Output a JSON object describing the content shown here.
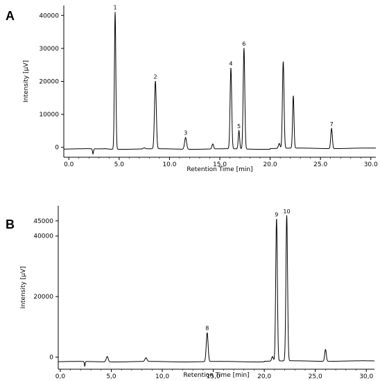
{
  "chart_data": [
    {
      "type": "line",
      "panel_label": "A",
      "xlabel": "Retention Time [min]",
      "ylabel": "Intensity [µV]",
      "xlim": [
        -0.5,
        30.5
      ],
      "ylim": [
        -3000,
        43000
      ],
      "x_ticks": [
        0.0,
        5.0,
        10.0,
        15.0,
        20.0,
        25.0,
        30.0
      ],
      "x_tick_labels": [
        "0.0",
        "5.0",
        "10.0",
        "15.0",
        "20.0",
        "25.0",
        "30.0"
      ],
      "y_ticks": [
        0,
        10000,
        20000,
        30000,
        40000
      ],
      "y_tick_labels": [
        "0",
        "10000",
        "20000",
        "30000",
        "40000"
      ],
      "baseline": -500,
      "peaks": [
        {
          "x": 2.4,
          "y": -2000,
          "w": 0.05
        },
        {
          "x": 3.6,
          "y": -400,
          "w": 0.2
        },
        {
          "x": 4.6,
          "y": 41000,
          "w": 0.07,
          "label": "1"
        },
        {
          "x": 7.5,
          "y": -200,
          "w": 0.1
        },
        {
          "x": 8.6,
          "y": 20000,
          "w": 0.09,
          "label": "2"
        },
        {
          "x": 11.6,
          "y": 3000,
          "w": 0.1,
          "label": "3"
        },
        {
          "x": 14.3,
          "y": 1000,
          "w": 0.08
        },
        {
          "x": 16.1,
          "y": 24000,
          "w": 0.08,
          "label": "4"
        },
        {
          "x": 16.9,
          "y": 5000,
          "w": 0.07,
          "label": "5"
        },
        {
          "x": 17.4,
          "y": 30000,
          "w": 0.08,
          "label": "6"
        },
        {
          "x": 20.9,
          "y": 1000,
          "w": 0.08
        },
        {
          "x": 21.3,
          "y": 25800,
          "w": 0.08
        },
        {
          "x": 22.3,
          "y": 15400,
          "w": 0.07
        },
        {
          "x": 26.1,
          "y": 5600,
          "w": 0.08,
          "label": "7"
        }
      ]
    },
    {
      "type": "line",
      "panel_label": "B",
      "xlabel": "Retention Time [min]",
      "ylabel": "Intensity [µV]",
      "xlim": [
        -0.2,
        30.8
      ],
      "ylim": [
        -4000,
        50000
      ],
      "x_ticks": [
        0.0,
        5.0,
        10.0,
        15.0,
        20.0,
        25.0,
        30.0
      ],
      "x_tick_labels": [
        "0,0",
        "5,0",
        "10,0",
        "15,0",
        "20,0",
        "25,0",
        "30,0"
      ],
      "y_ticks": [
        0,
        20000,
        40000,
        45000
      ],
      "y_tick_labels": [
        "0",
        "20000",
        "40000",
        "45000"
      ],
      "baseline": -1500,
      "peaks": [
        {
          "x": 2.4,
          "y": -3000,
          "w": 0.04
        },
        {
          "x": 4.6,
          "y": 200,
          "w": 0.1
        },
        {
          "x": 8.4,
          "y": -300,
          "w": 0.1
        },
        {
          "x": 14.4,
          "y": 8000,
          "w": 0.09,
          "label": "8"
        },
        {
          "x": 20.8,
          "y": 0,
          "w": 0.08
        },
        {
          "x": 21.2,
          "y": 45500,
          "w": 0.08,
          "label": "9"
        },
        {
          "x": 22.2,
          "y": 46600,
          "w": 0.08,
          "label": "10"
        },
        {
          "x": 26.0,
          "y": 2400,
          "w": 0.08
        }
      ]
    }
  ]
}
